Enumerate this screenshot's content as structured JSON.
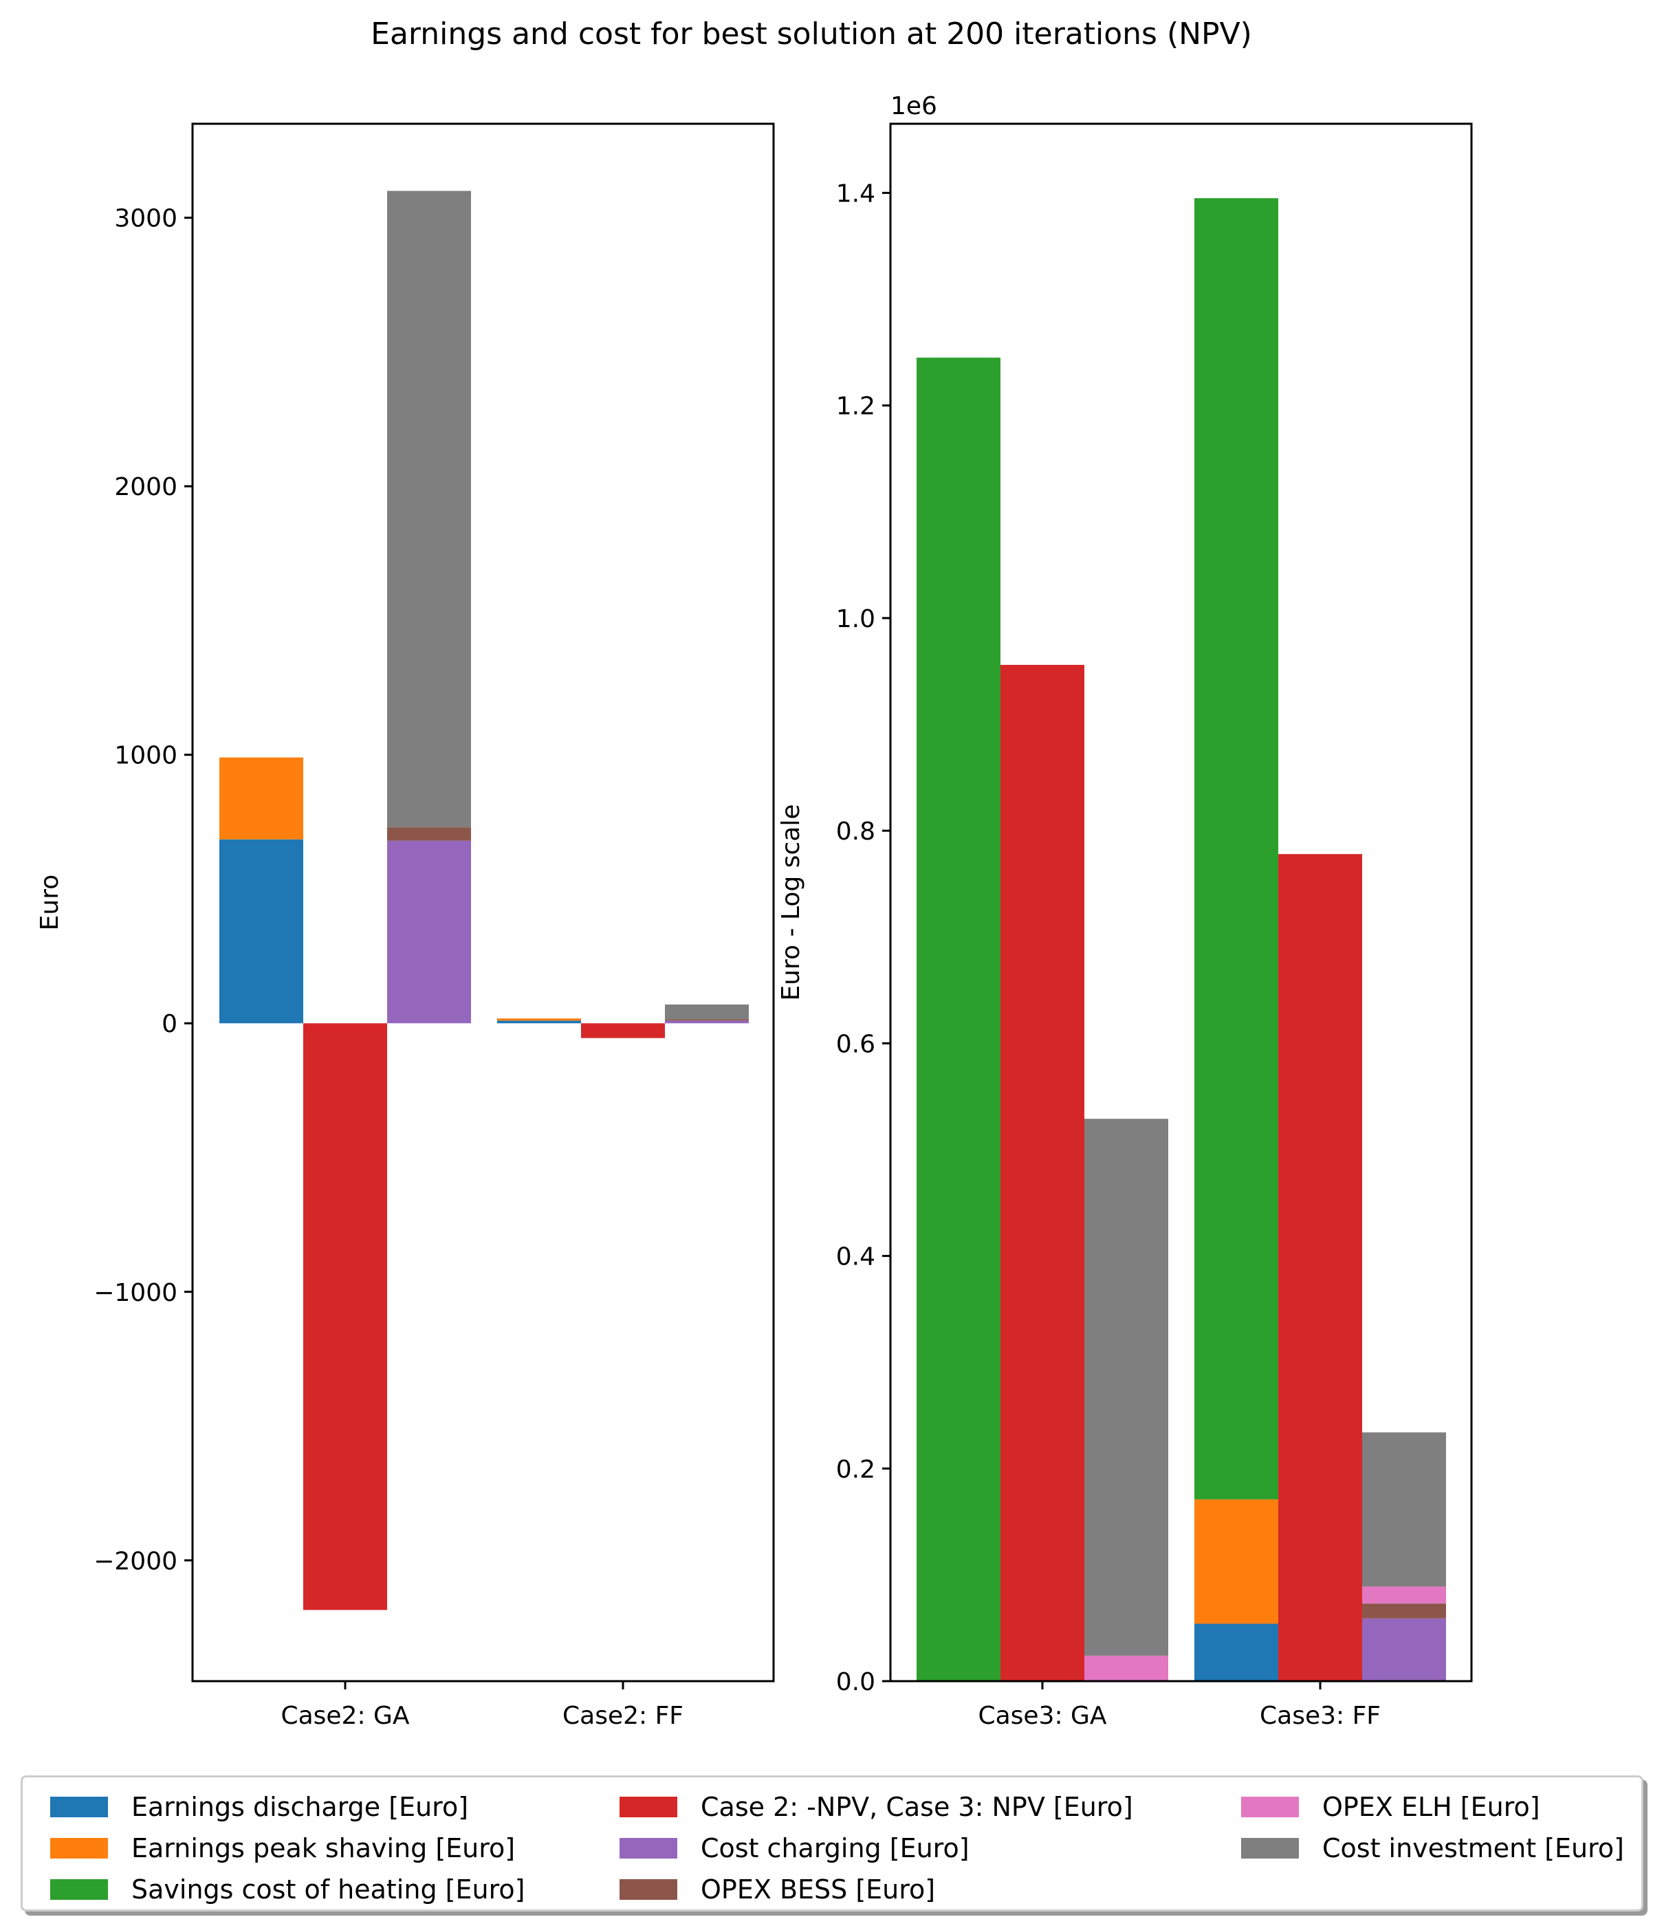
{
  "title": "Earnings and cost for best solution at 200 iterations (NPV)",
  "colors": {
    "earnings_discharge": "#1f77b4",
    "earnings_peak_shaving": "#ff7f0e",
    "savings_heating": "#2ca02c",
    "npv": "#d62728",
    "cost_charging": "#9467bd",
    "opex_bess": "#8c564b",
    "opex_elh": "#e377c2",
    "cost_investment": "#7f7f7f"
  },
  "legend": [
    {
      "key": "earnings_discharge",
      "label": "Earnings discharge [Euro]"
    },
    {
      "key": "earnings_peak_shaving",
      "label": "Earnings peak shaving [Euro]"
    },
    {
      "key": "savings_heating",
      "label": "Savings cost of heating [Euro]"
    },
    {
      "key": "npv",
      "label": "Case 2: -NPV, Case 3: NPV  [Euro]"
    },
    {
      "key": "cost_charging",
      "label": "Cost charging [Euro]"
    },
    {
      "key": "opex_bess",
      "label": "OPEX BESS [Euro]"
    },
    {
      "key": "opex_elh",
      "label": "OPEX ELH [Euro]"
    },
    {
      "key": "cost_investment",
      "label": "Cost investment [Euro]"
    }
  ],
  "chart_data": [
    {
      "type": "bar",
      "stacked": true,
      "categories": [
        "Case2: GA",
        "Case2: FF"
      ],
      "ylabel": "Euro",
      "ylim": [
        -2450,
        3350
      ],
      "yticks": [
        3000,
        2000,
        1000,
        0,
        -1000,
        -2000
      ],
      "ytick_labels": [
        "3000",
        "2000",
        "1000",
        "0",
        "−1000",
        "−2000"
      ],
      "groups": [
        {
          "category": "Case2: GA",
          "bars": [
            {
              "slot": 0,
              "segments": [
                {
                  "key": "earnings_discharge",
                  "value": 685
                },
                {
                  "key": "earnings_peak_shaving",
                  "value": 305
                }
              ]
            },
            {
              "slot": 1,
              "segments": [
                {
                  "key": "npv",
                  "value": -2185
                }
              ]
            },
            {
              "slot": 2,
              "segments": [
                {
                  "key": "cost_charging",
                  "value": 680
                },
                {
                  "key": "opex_bess",
                  "value": 50
                },
                {
                  "key": "cost_investment",
                  "value": 2370
                }
              ]
            }
          ]
        },
        {
          "category": "Case2: FF",
          "bars": [
            {
              "slot": 0,
              "segments": [
                {
                  "key": "earnings_discharge",
                  "value": 10
                },
                {
                  "key": "earnings_peak_shaving",
                  "value": 8
                }
              ]
            },
            {
              "slot": 1,
              "segments": [
                {
                  "key": "npv",
                  "value": -55
                }
              ]
            },
            {
              "slot": 2,
              "segments": [
                {
                  "key": "cost_charging",
                  "value": 10
                },
                {
                  "key": "opex_bess",
                  "value": 5
                },
                {
                  "key": "cost_investment",
                  "value": 55
                }
              ]
            }
          ]
        }
      ]
    },
    {
      "type": "bar",
      "stacked": true,
      "categories": [
        "Case3: GA",
        "Case3: FF"
      ],
      "ylabel": "Euro - Log scale",
      "offset_label": "1e6",
      "ylim": [
        0,
        1.465
      ],
      "yticks": [
        0.0,
        0.2,
        0.4,
        0.6,
        0.8,
        1.0,
        1.2,
        1.4
      ],
      "ytick_labels": [
        "0.0",
        "0.2",
        "0.4",
        "0.6",
        "0.8",
        "1.0",
        "1.2",
        "1.4"
      ],
      "groups": [
        {
          "category": "Case3: GA",
          "bars": [
            {
              "slot": 0,
              "segments": [
                {
                  "key": "savings_heating",
                  "value": 1.245
                }
              ]
            },
            {
              "slot": 1,
              "segments": [
                {
                  "key": "npv",
                  "value": 0.956
                }
              ]
            },
            {
              "slot": 2,
              "segments": [
                {
                  "key": "opex_elh",
                  "value": 0.024
                },
                {
                  "key": "cost_investment",
                  "value": 0.505
                }
              ]
            }
          ]
        },
        {
          "category": "Case3: FF",
          "bars": [
            {
              "slot": 0,
              "segments": [
                {
                  "key": "earnings_discharge",
                  "value": 0.054
                },
                {
                  "key": "earnings_peak_shaving",
                  "value": 0.117
                },
                {
                  "key": "savings_heating",
                  "value": 1.224
                }
              ]
            },
            {
              "slot": 1,
              "segments": [
                {
                  "key": "npv",
                  "value": 0.778
                }
              ]
            },
            {
              "slot": 2,
              "segments": [
                {
                  "key": "cost_charging",
                  "value": 0.059
                },
                {
                  "key": "opex_bess",
                  "value": 0.014
                },
                {
                  "key": "opex_elh",
                  "value": 0.016
                },
                {
                  "key": "cost_investment",
                  "value": 0.145
                }
              ]
            }
          ]
        }
      ]
    }
  ]
}
